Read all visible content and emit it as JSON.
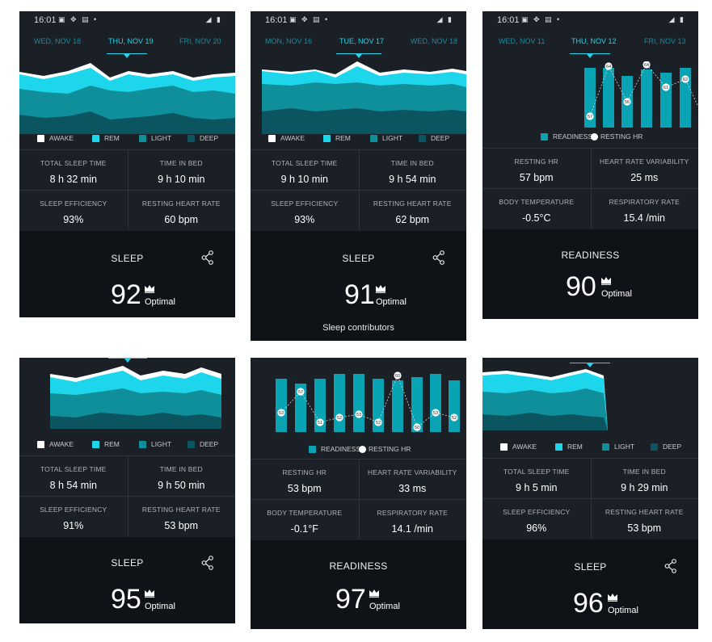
{
  "colors": {
    "rem": "#1ed6ec",
    "light": "#0f8f9a",
    "deep": "#0b5560",
    "awake": "#ffffff",
    "bar": "#0aa3b3",
    "bg": "#1b1f26"
  },
  "status": {
    "time": "16:01"
  },
  "legend_sleep": {
    "awake": "AWAKE",
    "rem": "REM",
    "light": "LIGHT",
    "deep": "DEEP"
  },
  "legend_readiness": {
    "readiness": "READINESS",
    "resting_hr": "RESTING HR"
  },
  "panels": [
    {
      "dates": [
        "WED, NOV 18",
        "THU, NOV 19",
        "FRI, NOV 20"
      ],
      "stats": [
        {
          "label": "TOTAL SLEEP TIME",
          "value": "8 h 32 min"
        },
        {
          "label": "TIME IN BED",
          "value": "9 h 10 min"
        },
        {
          "label": "SLEEP EFFICIENCY",
          "value": "93%"
        },
        {
          "label": "RESTING HEART RATE",
          "value": "60 bpm"
        }
      ],
      "section": "SLEEP",
      "score": "92",
      "rating": "Optimal"
    },
    {
      "dates": [
        "MON, NOV 16",
        "TUE, NOV 17",
        "WED, NOV 18"
      ],
      "stats": [
        {
          "label": "TOTAL SLEEP TIME",
          "value": "9 h 10 min"
        },
        {
          "label": "TIME IN BED",
          "value": "9 h 54 min"
        },
        {
          "label": "SLEEP EFFICIENCY",
          "value": "93%"
        },
        {
          "label": "RESTING HEART RATE",
          "value": "62 bpm"
        }
      ],
      "section": "SLEEP",
      "score": "91",
      "rating": "Optimal",
      "contributors": "Sleep contributors"
    },
    {
      "dates": [
        "WED, NOV 11",
        "THU, NOV 12",
        "FRI, NOV 13"
      ],
      "stats": [
        {
          "label": "RESTING HR",
          "value": "57 bpm"
        },
        {
          "label": "HEART RATE VARIABILITY",
          "value": "25 ms"
        },
        {
          "label": "BODY TEMPERATURE",
          "value": "-0.5°C"
        },
        {
          "label": "RESPIRATORY RATE",
          "value": "15.4 /min"
        }
      ],
      "section": "READINESS",
      "score": "90",
      "rating": "Optimal",
      "hr_labels": [
        "57",
        "64",
        "56",
        "64",
        "61",
        "62"
      ]
    },
    {
      "stats": [
        {
          "label": "TOTAL SLEEP TIME",
          "value": "8 h 54 min"
        },
        {
          "label": "TIME IN BED",
          "value": "9 h 50 min"
        },
        {
          "label": "SLEEP EFFICIENCY",
          "value": "91%"
        },
        {
          "label": "RESTING HEART RATE",
          "value": "53 bpm"
        }
      ],
      "section": "SLEEP",
      "score": "95",
      "rating": "Optimal"
    },
    {
      "stats": [
        {
          "label": "RESTING HR",
          "value": "53 bpm"
        },
        {
          "label": "HEART RATE VARIABILITY",
          "value": "33 ms"
        },
        {
          "label": "BODY TEMPERATURE",
          "value": "-0.1°F"
        },
        {
          "label": "RESPIRATORY RATE",
          "value": "14.1 /min"
        }
      ],
      "section": "READINESS",
      "score": "97",
      "rating": "Optimal",
      "hr_labels": [
        "53",
        "57",
        "51",
        "52",
        "53",
        "52",
        "60",
        "50",
        "53",
        "52"
      ]
    },
    {
      "stats": [
        {
          "label": "TOTAL SLEEP TIME",
          "value": "9 h 5 min"
        },
        {
          "label": "TIME IN BED",
          "value": "9 h 29 min"
        },
        {
          "label": "SLEEP EFFICIENCY",
          "value": "96%"
        },
        {
          "label": "RESTING HEART RATE",
          "value": "53 bpm"
        }
      ],
      "section": "SLEEP",
      "score": "96",
      "rating": "Optimal"
    }
  ]
}
